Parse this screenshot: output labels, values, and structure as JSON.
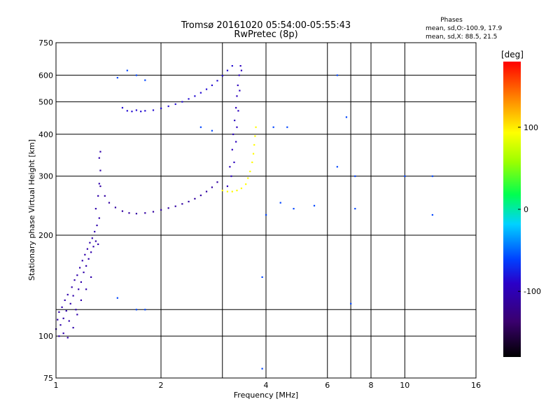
{
  "chart_data": {
    "type": "scatter",
    "title": "Tromsø 20161020 05:54:00-05:55:43",
    "subtitle": "RwPretec (8p)",
    "xlabel": "Frequency [MHz]",
    "ylabel": "Stationary phase Virtual Height [km]",
    "x_scale": "log",
    "y_scale": "log",
    "xlim": [
      1,
      16
    ],
    "ylim": [
      75,
      750
    ],
    "x_ticks": [
      1,
      2,
      4,
      6,
      8,
      10,
      16
    ],
    "x_grid": [
      2,
      3,
      4,
      6,
      7,
      8,
      10
    ],
    "y_ticks": [
      75,
      100,
      200,
      300,
      400,
      500,
      600,
      750
    ],
    "y_grid": [
      100,
      120,
      200,
      300,
      400,
      500,
      600
    ],
    "grid": true,
    "stats": {
      "heading": "Phases",
      "line1": "mean, sd,O:-100.9, 17.9",
      "line2": "mean, sd,X:  88.5, 21.5"
    },
    "colorbar": {
      "label": "[deg]",
      "min": -180,
      "max": 180,
      "ticks": [
        100,
        0,
        -100
      ]
    },
    "series": [
      {
        "points": [
          [
            1.0,
            105
          ],
          [
            1.01,
            112
          ],
          [
            1.02,
            118
          ],
          [
            1.03,
            108
          ],
          [
            1.04,
            122
          ],
          [
            1.05,
            113
          ],
          [
            1.06,
            128
          ],
          [
            1.07,
            119
          ],
          [
            1.08,
            133
          ],
          [
            1.09,
            111
          ],
          [
            1.1,
            125
          ],
          [
            1.11,
            140
          ],
          [
            1.12,
            132
          ],
          [
            1.13,
            147
          ],
          [
            1.14,
            120
          ],
          [
            1.15,
            152
          ],
          [
            1.16,
            138
          ],
          [
            1.17,
            160
          ],
          [
            1.18,
            145
          ],
          [
            1.19,
            168
          ],
          [
            1.2,
            155
          ],
          [
            1.21,
            175
          ],
          [
            1.22,
            162
          ],
          [
            1.23,
            182
          ],
          [
            1.24,
            170
          ],
          [
            1.25,
            190
          ],
          [
            1.26,
            178
          ],
          [
            1.27,
            196
          ],
          [
            1.28,
            185
          ],
          [
            1.29,
            205
          ],
          [
            1.3,
            192
          ],
          [
            1.31,
            214
          ],
          [
            1.32,
            188
          ],
          [
            1.33,
            225
          ],
          [
            1.3,
            240
          ],
          [
            1.32,
            262
          ],
          [
            1.33,
            285
          ],
          [
            1.34,
            312
          ],
          [
            1.33,
            340
          ],
          [
            1.34,
            355
          ],
          [
            1.02,
            100
          ],
          [
            1.05,
            102
          ],
          [
            1.08,
            99
          ],
          [
            1.12,
            106
          ],
          [
            1.18,
            128
          ],
          [
            1.22,
            138
          ],
          [
            1.26,
            150
          ],
          [
            1.15,
            116
          ]
        ],
        "phase": -105
      },
      {
        "points": [
          [
            1.34,
            280
          ],
          [
            1.38,
            262
          ],
          [
            1.42,
            250
          ],
          [
            1.48,
            242
          ],
          [
            1.55,
            236
          ],
          [
            1.62,
            233
          ],
          [
            1.7,
            232
          ],
          [
            1.8,
            233
          ],
          [
            1.9,
            235
          ],
          [
            2.0,
            238
          ],
          [
            2.1,
            241
          ],
          [
            2.2,
            244
          ],
          [
            2.3,
            248
          ],
          [
            2.4,
            252
          ],
          [
            2.5,
            257
          ],
          [
            2.6,
            263
          ],
          [
            2.7,
            270
          ],
          [
            2.8,
            278
          ],
          [
            2.9,
            288
          ]
        ],
        "phase": -110
      },
      {
        "points": [
          [
            1.55,
            480
          ],
          [
            1.6,
            470
          ],
          [
            1.65,
            468
          ],
          [
            1.7,
            472
          ],
          [
            1.75,
            468
          ],
          [
            1.8,
            470
          ],
          [
            1.9,
            472
          ],
          [
            2.0,
            478
          ],
          [
            2.1,
            485
          ],
          [
            2.2,
            492
          ],
          [
            2.3,
            500
          ],
          [
            2.4,
            510
          ],
          [
            2.5,
            520
          ],
          [
            2.6,
            532
          ],
          [
            2.7,
            545
          ],
          [
            2.8,
            560
          ],
          [
            2.9,
            578
          ],
          [
            3.0,
            598
          ],
          [
            3.1,
            620
          ],
          [
            3.2,
            640
          ]
        ],
        "phase": -85
      },
      {
        "points": [
          [
            3.1,
            280
          ],
          [
            3.15,
            320
          ],
          [
            3.2,
            360
          ],
          [
            3.22,
            400
          ],
          [
            3.25,
            440
          ],
          [
            3.28,
            480
          ],
          [
            3.3,
            520
          ],
          [
            3.32,
            560
          ],
          [
            3.35,
            600
          ],
          [
            3.38,
            640
          ],
          [
            3.28,
            380
          ],
          [
            3.24,
            330
          ],
          [
            3.18,
            300
          ],
          [
            3.3,
            420
          ],
          [
            3.33,
            470
          ],
          [
            3.36,
            540
          ],
          [
            3.4,
            620
          ]
        ],
        "phase": -95
      },
      {
        "points": [
          [
            3.0,
            272
          ],
          [
            3.1,
            270
          ],
          [
            3.2,
            270
          ],
          [
            3.3,
            272
          ],
          [
            3.4,
            276
          ],
          [
            3.5,
            284
          ],
          [
            3.55,
            296
          ],
          [
            3.6,
            310
          ],
          [
            3.65,
            330
          ],
          [
            3.68,
            350
          ],
          [
            3.7,
            372
          ],
          [
            3.72,
            395
          ],
          [
            3.74,
            420
          ]
        ],
        "phase": 95
      },
      {
        "points": [
          [
            1.6,
            620
          ],
          [
            1.7,
            600
          ],
          [
            1.8,
            580
          ],
          [
            1.5,
            590
          ],
          [
            4.0,
            230
          ],
          [
            4.4,
            250
          ],
          [
            4.8,
            240
          ],
          [
            5.5,
            245
          ],
          [
            6.4,
            600
          ],
          [
            6.4,
            320
          ],
          [
            6.8,
            450
          ],
          [
            7.2,
            300
          ],
          [
            7.2,
            240
          ],
          [
            10.0,
            300
          ],
          [
            12.0,
            300
          ],
          [
            12.0,
            230
          ],
          [
            3.9,
            80
          ],
          [
            3.9,
            150
          ],
          [
            1.5,
            130
          ],
          [
            1.7,
            120
          ],
          [
            1.8,
            120
          ],
          [
            2.6,
            420
          ],
          [
            2.8,
            410
          ],
          [
            4.2,
            420
          ],
          [
            4.6,
            420
          ],
          [
            7.0,
            125
          ]
        ],
        "phase": -60
      }
    ]
  }
}
